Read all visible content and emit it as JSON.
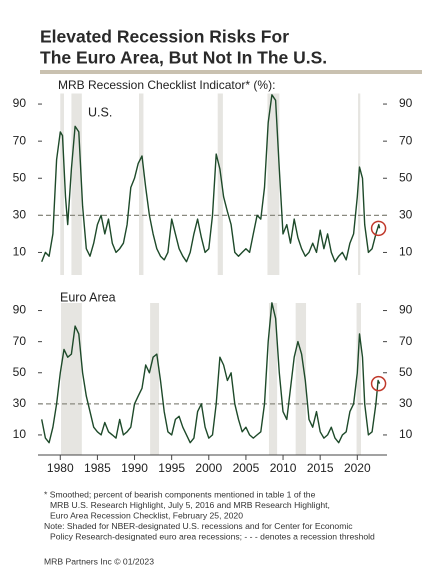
{
  "title": [
    "Elevated Recession Risks For",
    "The Euro Area, But Not In The U.S."
  ],
  "subtitle": "MRB Recession Checklist Indicator* (%):",
  "notes": [
    "* Smoothed; percent of bearish components mentioned in table 1 of the",
    "MRB U.S. Research Highlight, July 5, 2016 and MRB Research Highlight,",
    "Euro Area Recession Checklist, February 25, 2020",
    "Note: Shaded for NBER-designated U.S. recessions and for Center for Economic",
    "Policy Research-designated euro area recessions; - - - denotes a recession threshold"
  ],
  "source": "MRB Partners Inc © 01/2023",
  "chart_data": [
    {
      "type": "line",
      "label": "U.S.",
      "color": "#1e4a2a",
      "xlim": [
        1977,
        2024
      ],
      "ylim": [
        0,
        100
      ],
      "yticks": [
        10,
        30,
        50,
        70,
        90
      ],
      "threshold": 30,
      "recessions": [
        [
          1980.0,
          1980.5
        ],
        [
          1981.5,
          1982.9
        ],
        [
          1990.6,
          1991.2
        ],
        [
          2001.2,
          2001.9
        ],
        [
          2007.9,
          2009.5
        ],
        [
          2020.1,
          2020.4
        ]
      ],
      "x": [
        1977.5,
        1978,
        1978.5,
        1979,
        1979.5,
        1980,
        1980.3,
        1980.7,
        1981,
        1981.5,
        1982,
        1982.5,
        1983,
        1983.5,
        1984,
        1984.5,
        1985,
        1985.5,
        1986,
        1986.5,
        1987,
        1987.5,
        1988,
        1988.5,
        1989,
        1989.5,
        1990,
        1990.5,
        1991,
        1991.5,
        1992,
        1992.5,
        1993,
        1993.5,
        1994,
        1994.5,
        1995,
        1995.5,
        1996,
        1996.5,
        1997,
        1997.5,
        1998,
        1998.5,
        1999,
        1999.5,
        2000,
        2000.5,
        2001,
        2001.5,
        2002,
        2002.5,
        2003,
        2003.5,
        2004,
        2004.5,
        2005,
        2005.5,
        2006,
        2006.5,
        2007,
        2007.5,
        2008,
        2008.5,
        2009,
        2009.5,
        2010,
        2010.5,
        2011,
        2011.5,
        2012,
        2012.5,
        2013,
        2013.5,
        2014,
        2014.5,
        2015,
        2015.5,
        2016,
        2016.5,
        2017,
        2017.5,
        2018,
        2018.5,
        2019,
        2019.5,
        2020,
        2020.3,
        2020.7,
        2021,
        2021.5,
        2022,
        2022.5,
        2022.9,
        2023
      ],
      "values": [
        5,
        10,
        8,
        20,
        60,
        75,
        73,
        40,
        25,
        55,
        78,
        75,
        35,
        12,
        8,
        15,
        25,
        30,
        20,
        28,
        15,
        10,
        12,
        15,
        25,
        45,
        50,
        58,
        62,
        45,
        30,
        20,
        12,
        8,
        6,
        10,
        28,
        20,
        12,
        8,
        5,
        10,
        20,
        28,
        18,
        10,
        12,
        30,
        63,
        55,
        40,
        32,
        25,
        10,
        8,
        10,
        12,
        10,
        20,
        30,
        28,
        45,
        80,
        95,
        92,
        55,
        20,
        25,
        15,
        28,
        18,
        12,
        8,
        10,
        15,
        10,
        22,
        12,
        20,
        10,
        5,
        8,
        10,
        6,
        15,
        20,
        40,
        56,
        50,
        25,
        10,
        12,
        20,
        25,
        23
      ]
    },
    {
      "type": "line",
      "label": "Euro Area",
      "color": "#1e4a2a",
      "xlim": [
        1977,
        2024
      ],
      "ylim": [
        0,
        100
      ],
      "yticks": [
        10,
        30,
        50,
        70,
        90
      ],
      "threshold": 30,
      "xticks": [
        1980,
        1985,
        1990,
        1995,
        2000,
        2005,
        2010,
        2015,
        2020
      ],
      "recessions": [
        [
          1980.1,
          1982.9
        ],
        [
          1992.1,
          1993.3
        ],
        [
          2008.1,
          2009.2
        ],
        [
          2011.7,
          2013.1
        ],
        [
          2019.9,
          2020.5
        ]
      ],
      "x": [
        1977.5,
        1978,
        1978.5,
        1979,
        1979.5,
        1980,
        1980.5,
        1981,
        1981.5,
        1982,
        1982.5,
        1983,
        1983.5,
        1984,
        1984.5,
        1985,
        1985.5,
        1986,
        1986.5,
        1987,
        1987.5,
        1988,
        1988.5,
        1989,
        1989.5,
        1990,
        1990.5,
        1991,
        1991.5,
        1992,
        1992.5,
        1993,
        1993.5,
        1994,
        1994.5,
        1995,
        1995.5,
        1996,
        1996.5,
        1997,
        1997.5,
        1998,
        1998.5,
        1999,
        1999.5,
        2000,
        2000.5,
        2001,
        2001.5,
        2002,
        2002.5,
        2003,
        2003.5,
        2004,
        2004.5,
        2005,
        2005.5,
        2006,
        2006.5,
        2007,
        2007.5,
        2008,
        2008.5,
        2009,
        2009.5,
        2010,
        2010.5,
        2011,
        2011.5,
        2012,
        2012.5,
        2013,
        2013.5,
        2014,
        2014.5,
        2015,
        2015.5,
        2016,
        2016.5,
        2017,
        2017.5,
        2018,
        2018.5,
        2019,
        2019.5,
        2020,
        2020.3,
        2020.7,
        2021,
        2021.5,
        2022,
        2022.5,
        2022.8,
        2023
      ],
      "values": [
        20,
        8,
        5,
        15,
        30,
        50,
        65,
        60,
        62,
        80,
        75,
        50,
        35,
        25,
        15,
        12,
        10,
        18,
        12,
        10,
        8,
        20,
        10,
        12,
        15,
        30,
        35,
        40,
        55,
        50,
        60,
        62,
        45,
        25,
        12,
        10,
        20,
        22,
        15,
        10,
        5,
        8,
        25,
        30,
        15,
        8,
        10,
        30,
        60,
        55,
        45,
        50,
        30,
        20,
        12,
        15,
        10,
        8,
        10,
        12,
        30,
        70,
        95,
        85,
        50,
        25,
        20,
        40,
        60,
        70,
        62,
        45,
        20,
        15,
        25,
        12,
        8,
        10,
        15,
        8,
        5,
        10,
        12,
        25,
        30,
        50,
        75,
        60,
        30,
        10,
        12,
        30,
        45,
        43
      ]
    }
  ]
}
